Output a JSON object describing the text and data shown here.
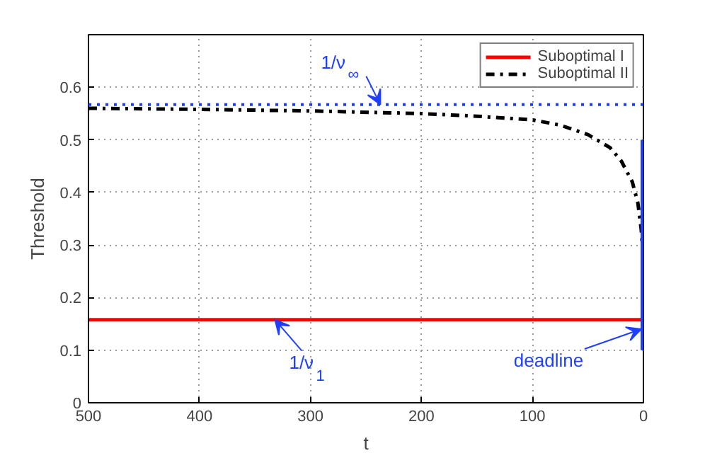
{
  "chart_data": {
    "type": "line",
    "xlabel": "t",
    "ylabel": "Threshold",
    "xlim": [
      500,
      0
    ],
    "xticks": [
      500,
      400,
      300,
      200,
      100,
      0
    ],
    "ylim": [
      0,
      0.7
    ],
    "yticks": [
      0,
      0.1,
      0.2,
      0.3,
      0.4,
      0.5,
      0.6
    ],
    "grid": true,
    "legend": "top right",
    "series": [
      {
        "name": "Suboptimal I",
        "color": "#ff0000",
        "line_style": "solid",
        "x": [
          500,
          0
        ],
        "values": [
          0.158,
          0.158
        ]
      },
      {
        "name": "Suboptimal II",
        "color": "#000000",
        "line_style": "dashdot",
        "x": [
          500,
          400,
          300,
          200,
          150,
          100,
          75,
          50,
          30,
          20,
          10,
          5,
          2,
          1
        ],
        "values": [
          0.56,
          0.558,
          0.555,
          0.55,
          0.545,
          0.538,
          0.528,
          0.51,
          0.485,
          0.46,
          0.42,
          0.38,
          0.33,
          0.3
        ]
      },
      {
        "color": "#1f3fff",
        "line_style": "solid",
        "x": [
          0,
          0
        ],
        "values": [
          0.1,
          0.5
        ]
      }
    ],
    "ref_lines": [
      {
        "axis": "y",
        "value": 0.567,
        "color": "#1f3fff",
        "line_style": "dotted"
      }
    ],
    "annotations": [
      {
        "text": "1/ν$_{∞}$",
        "x": 237,
        "y": 0.567
      },
      {
        "text": "1/ν$_{1}$",
        "x": 332,
        "y": 0.158
      },
      {
        "text": "deadline",
        "x": 2,
        "y": 0.14
      }
    ]
  }
}
